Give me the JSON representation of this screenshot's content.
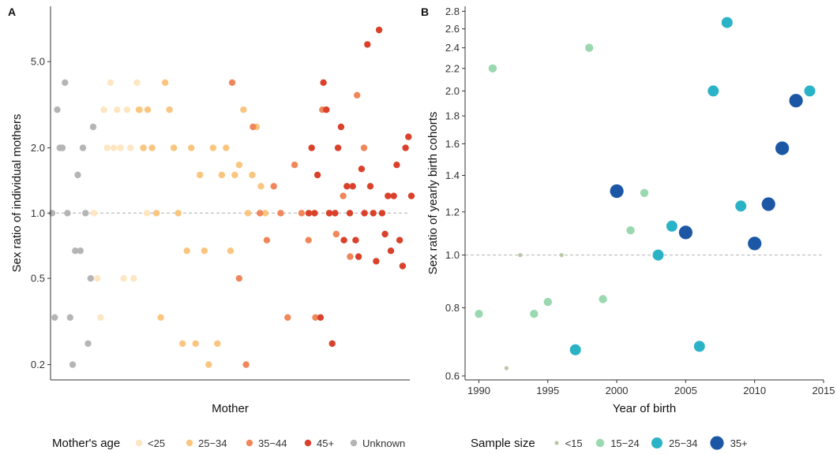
{
  "chart_data": [
    {
      "panel": "A",
      "type": "scatter",
      "xlabel": "Mother",
      "ylabel": "Sex ratio of individual mothers",
      "y_scale": "log",
      "ylim": [
        0.17,
        9.0
      ],
      "y_ticks": [
        0.2,
        0.5,
        1.0,
        2.0,
        5.0
      ],
      "y_tick_labels": [
        "0.2",
        "0.5",
        "1.0",
        "2.0",
        "5.0"
      ],
      "reference_line": 1.0,
      "grid": false,
      "legend_title": "Mother's age",
      "legend_position": "bottom",
      "series": [
        {
          "name": "<25",
          "color": "#fde6c2",
          "y": [
            1.0,
            0.5,
            0.33,
            3.0,
            2.0,
            4.0,
            2.0,
            3.0,
            2.0,
            0.5,
            3.0,
            2.0,
            0.5,
            4.0,
            3.0,
            2.0,
            1.0
          ]
        },
        {
          "name": "25-34",
          "color": "#fac67f",
          "y": [
            3.0,
            2.0,
            3.0,
            2.0,
            1.0,
            0.33,
            4.0,
            3.0,
            2.0,
            1.0,
            0.25,
            0.67,
            2.0,
            0.25,
            1.5,
            0.67,
            0.2,
            2.0,
            0.25,
            1.5,
            2.0,
            0.67,
            1.5,
            1.67,
            3.0,
            1.0,
            1.5,
            2.5,
            1.33,
            1.0
          ]
        },
        {
          "name": "35-44",
          "color": "#f0875a",
          "y": [
            4.0,
            0.5,
            0.2,
            2.5,
            1.0,
            0.75,
            1.33,
            1.0,
            0.33,
            1.67,
            1.0,
            0.75,
            0.33,
            3.0,
            1.0,
            0.8,
            1.2,
            0.63,
            3.5,
            2.0
          ]
        },
        {
          "name": "45+",
          "color": "#d9412b",
          "y": [
            1.0,
            2.0,
            1.0,
            1.5,
            0.33,
            4.0,
            3.0,
            1.0,
            0.25,
            1.0,
            2.0,
            2.5,
            0.75,
            1.33,
            1.0,
            1.33,
            0.75,
            0.63,
            1.6,
            1.0,
            6.0,
            1.33,
            1.0,
            0.6,
            7.0,
            1.0,
            0.8,
            1.2,
            0.67,
            1.2,
            1.67,
            0.75,
            0.57,
            2.0,
            2.25,
            1.2
          ]
        },
        {
          "name": "Unknown",
          "color": "#b5b5b5",
          "y": [
            1.0,
            0.33,
            3.0,
            2.0,
            2.0,
            4.0,
            1.0,
            0.33,
            0.2,
            0.67,
            1.5,
            0.67,
            2.0,
            1.0,
            0.25,
            0.5,
            2.5
          ]
        }
      ]
    },
    {
      "panel": "B",
      "type": "scatter",
      "xlabel": "Year of birth",
      "ylabel": "Sex ratio of yearly birth cohorts",
      "xlim": [
        1989,
        2015
      ],
      "x_ticks": [
        1990,
        1995,
        2000,
        2005,
        2010,
        2015
      ],
      "x_tick_labels": [
        "1990",
        "1995",
        "2000",
        "2005",
        "2010",
        "2015"
      ],
      "ylim": [
        0.59,
        2.86
      ],
      "y_ticks": [
        0.6,
        0.8,
        1.0,
        1.2,
        1.4,
        1.6,
        1.8,
        2.0,
        2.2,
        2.4,
        2.6,
        2.8
      ],
      "y_tick_labels": [
        "0.6",
        "0.8",
        "1.0",
        "1.2",
        "1.4",
        "1.6",
        "1.8",
        "2.0",
        "2.2",
        "2.4",
        "2.6",
        "2.8"
      ],
      "reference_line": 1.0,
      "grid": false,
      "legend_title": "Sample size",
      "legend_position": "bottom",
      "series": [
        {
          "name": "<15",
          "color": "#b8c7a6",
          "points": [
            {
              "x": 1992,
              "y": 0.62
            },
            {
              "x": 1993,
              "y": 1.0
            },
            {
              "x": 1996,
              "y": 1.0
            }
          ]
        },
        {
          "name": "15-24",
          "color": "#9ad8b0",
          "points": [
            {
              "x": 1990,
              "y": 0.78
            },
            {
              "x": 1991,
              "y": 2.2
            },
            {
              "x": 1994,
              "y": 0.78
            },
            {
              "x": 1995,
              "y": 0.82
            },
            {
              "x": 1998,
              "y": 2.4
            },
            {
              "x": 1999,
              "y": 0.83
            },
            {
              "x": 2001,
              "y": 1.11
            },
            {
              "x": 2002,
              "y": 1.3
            }
          ]
        },
        {
          "name": "25-34",
          "color": "#2ab3c7",
          "points": [
            {
              "x": 1997,
              "y": 0.67
            },
            {
              "x": 2003,
              "y": 1.0
            },
            {
              "x": 2004,
              "y": 1.13
            },
            {
              "x": 2006,
              "y": 0.68
            },
            {
              "x": 2007,
              "y": 2.0
            },
            {
              "x": 2008,
              "y": 2.67
            },
            {
              "x": 2009,
              "y": 1.23
            },
            {
              "x": 2014,
              "y": 2.0
            }
          ]
        },
        {
          "name": "35+",
          "color": "#1c57a5",
          "points": [
            {
              "x": 2000,
              "y": 1.31
            },
            {
              "x": 2005,
              "y": 1.1
            },
            {
              "x": 2010,
              "y": 1.05
            },
            {
              "x": 2011,
              "y": 1.24
            },
            {
              "x": 2012,
              "y": 1.57
            },
            {
              "x": 2013,
              "y": 1.92
            }
          ]
        }
      ]
    }
  ]
}
